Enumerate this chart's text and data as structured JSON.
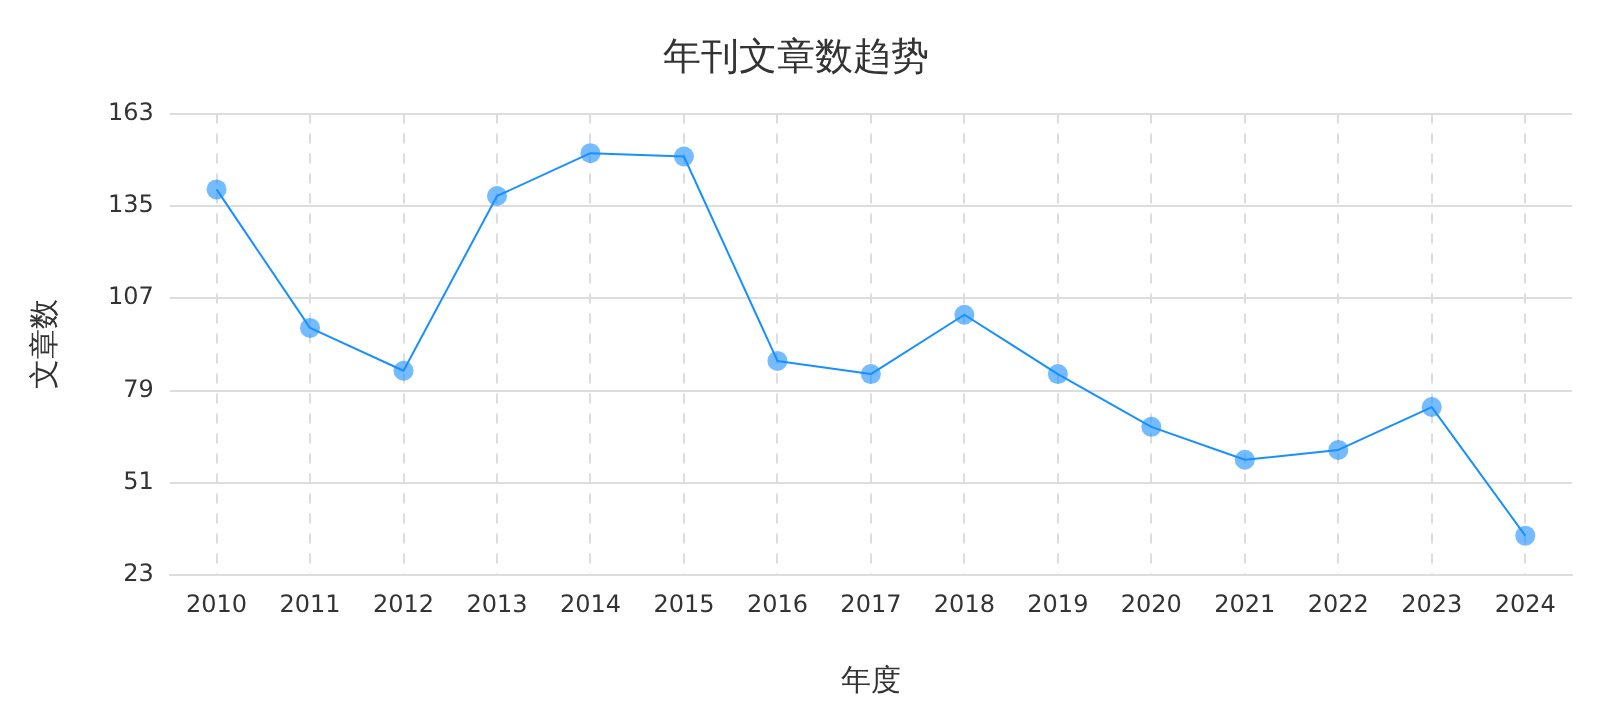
{
  "chart_data": {
    "type": "line",
    "title": "年刊文章数趋势",
    "xlabel": "年度",
    "ylabel": "文章数",
    "categories": [
      "2010",
      "2011",
      "2012",
      "2013",
      "2014",
      "2015",
      "2016",
      "2017",
      "2018",
      "2019",
      "2020",
      "2021",
      "2022",
      "2023",
      "2024"
    ],
    "series": [
      {
        "color": "#1890ff",
        "values": [
          140,
          98,
          85,
          138,
          151,
          150,
          88,
          84,
          102,
          84,
          68,
          58,
          61,
          74,
          35
        ]
      }
    ],
    "ylim": [
      23,
      163
    ],
    "yticks": [
      23,
      51,
      79,
      107,
      135,
      163
    ],
    "grid": true,
    "marker": "circle",
    "line_style": "solid"
  }
}
